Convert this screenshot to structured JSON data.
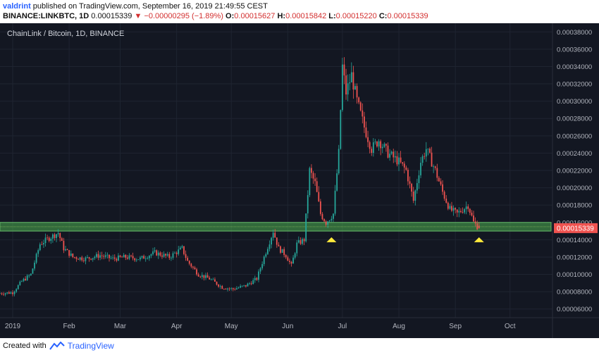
{
  "header": {
    "user": "valdrint",
    "published": "published on TradingView.com, September 16, 2019 21:49:55 CEST",
    "symbol": "BINANCE:LINKBTC, 1D",
    "last": "0.00015339",
    "change": "−0.00000295 (−1.89%)",
    "o_label": "O:",
    "o": "0.00015627",
    "h_label": "H:",
    "h": "0.00015842",
    "l_label": "L:",
    "l": "0.00015220",
    "c_label": "C:",
    "c": "0.00015339"
  },
  "footer": {
    "created_with": "Created with",
    "brand": "TradingView"
  },
  "colors": {
    "background": "#131722",
    "up": "#26a69a",
    "down": "#ef5350",
    "zone": "#4caf50",
    "marker": "#ffeb3b",
    "price_tag": "#ef5350"
  },
  "chart_data": {
    "type": "candlestick",
    "title": "ChainLink / Bitcoin, 1D, BINANCE",
    "price_label": "0.00015339",
    "ylim": [
      5e-05,
      0.00039
    ],
    "y_ticks": [
      "0.00006000",
      "0.00008000",
      "0.00010000",
      "0.00012000",
      "0.00014000",
      "0.00016000",
      "0.00018000",
      "0.00020000",
      "0.00022000",
      "0.00024000",
      "0.00026000",
      "0.00028000",
      "0.00030000",
      "0.00032000",
      "0.00034000",
      "0.00036000",
      "0.00038000"
    ],
    "x_ticks": [
      {
        "label": "2019",
        "day": 0
      },
      {
        "label": "Feb",
        "day": 31
      },
      {
        "label": "Mar",
        "day": 59
      },
      {
        "label": "Apr",
        "day": 90
      },
      {
        "label": "May",
        "day": 120
      },
      {
        "label": "Jun",
        "day": 151
      },
      {
        "label": "Jul",
        "day": 181
      },
      {
        "label": "Aug",
        "day": 212
      },
      {
        "label": "Sep",
        "day": 243
      },
      {
        "label": "Oct",
        "day": 273
      }
    ],
    "support_zone": [
      0.00015,
      0.00016
    ],
    "markers": [
      {
        "day": 175,
        "price": 0.000142
      },
      {
        "day": 256,
        "price": 0.000142
      }
    ],
    "close_anchors": [
      [
        -8,
        7.8e-05
      ],
      [
        0,
        7.9e-05
      ],
      [
        5,
        9.2e-05
      ],
      [
        10,
        0.0001
      ],
      [
        15,
        0.000135
      ],
      [
        20,
        0.000142
      ],
      [
        25,
        0.000148
      ],
      [
        28,
        0.00013
      ],
      [
        33,
        0.00012
      ],
      [
        40,
        0.000118
      ],
      [
        48,
        0.000122
      ],
      [
        55,
        0.000118
      ],
      [
        62,
        0.00012
      ],
      [
        70,
        0.000118
      ],
      [
        78,
        0.000125
      ],
      [
        86,
        0.00012
      ],
      [
        93,
        0.00013
      ],
      [
        96,
        0.000115
      ],
      [
        102,
        0.0001
      ],
      [
        108,
        9.5e-05
      ],
      [
        115,
        8.5e-05
      ],
      [
        121,
        8.3e-05
      ],
      [
        128,
        8.7e-05
      ],
      [
        134,
        9.5e-05
      ],
      [
        138,
        0.00012
      ],
      [
        143,
        0.00015
      ],
      [
        146,
        0.00013
      ],
      [
        150,
        0.000122
      ],
      [
        153,
        0.00011
      ],
      [
        156,
        0.000135
      ],
      [
        160,
        0.00014
      ],
      [
        163,
        0.00022
      ],
      [
        166,
        0.000205
      ],
      [
        169,
        0.00017
      ],
      [
        172,
        0.00016
      ],
      [
        176,
        0.00017
      ],
      [
        179,
        0.00024
      ],
      [
        181,
        0.00034
      ],
      [
        183,
        0.00031
      ],
      [
        186,
        0.00033
      ],
      [
        189,
        0.0003
      ],
      [
        193,
        0.00027
      ],
      [
        197,
        0.000245
      ],
      [
        201,
        0.000255
      ],
      [
        206,
        0.00024
      ],
      [
        212,
        0.00023
      ],
      [
        216,
        0.00022
      ],
      [
        220,
        0.000185
      ],
      [
        224,
        0.00023
      ],
      [
        227,
        0.000245
      ],
      [
        232,
        0.00022
      ],
      [
        236,
        0.000195
      ],
      [
        240,
        0.000175
      ],
      [
        244,
        0.00017
      ],
      [
        247,
        0.000175
      ],
      [
        250,
        0.00018
      ],
      [
        253,
        0.00016
      ],
      [
        256,
        0.0001534
      ]
    ]
  }
}
